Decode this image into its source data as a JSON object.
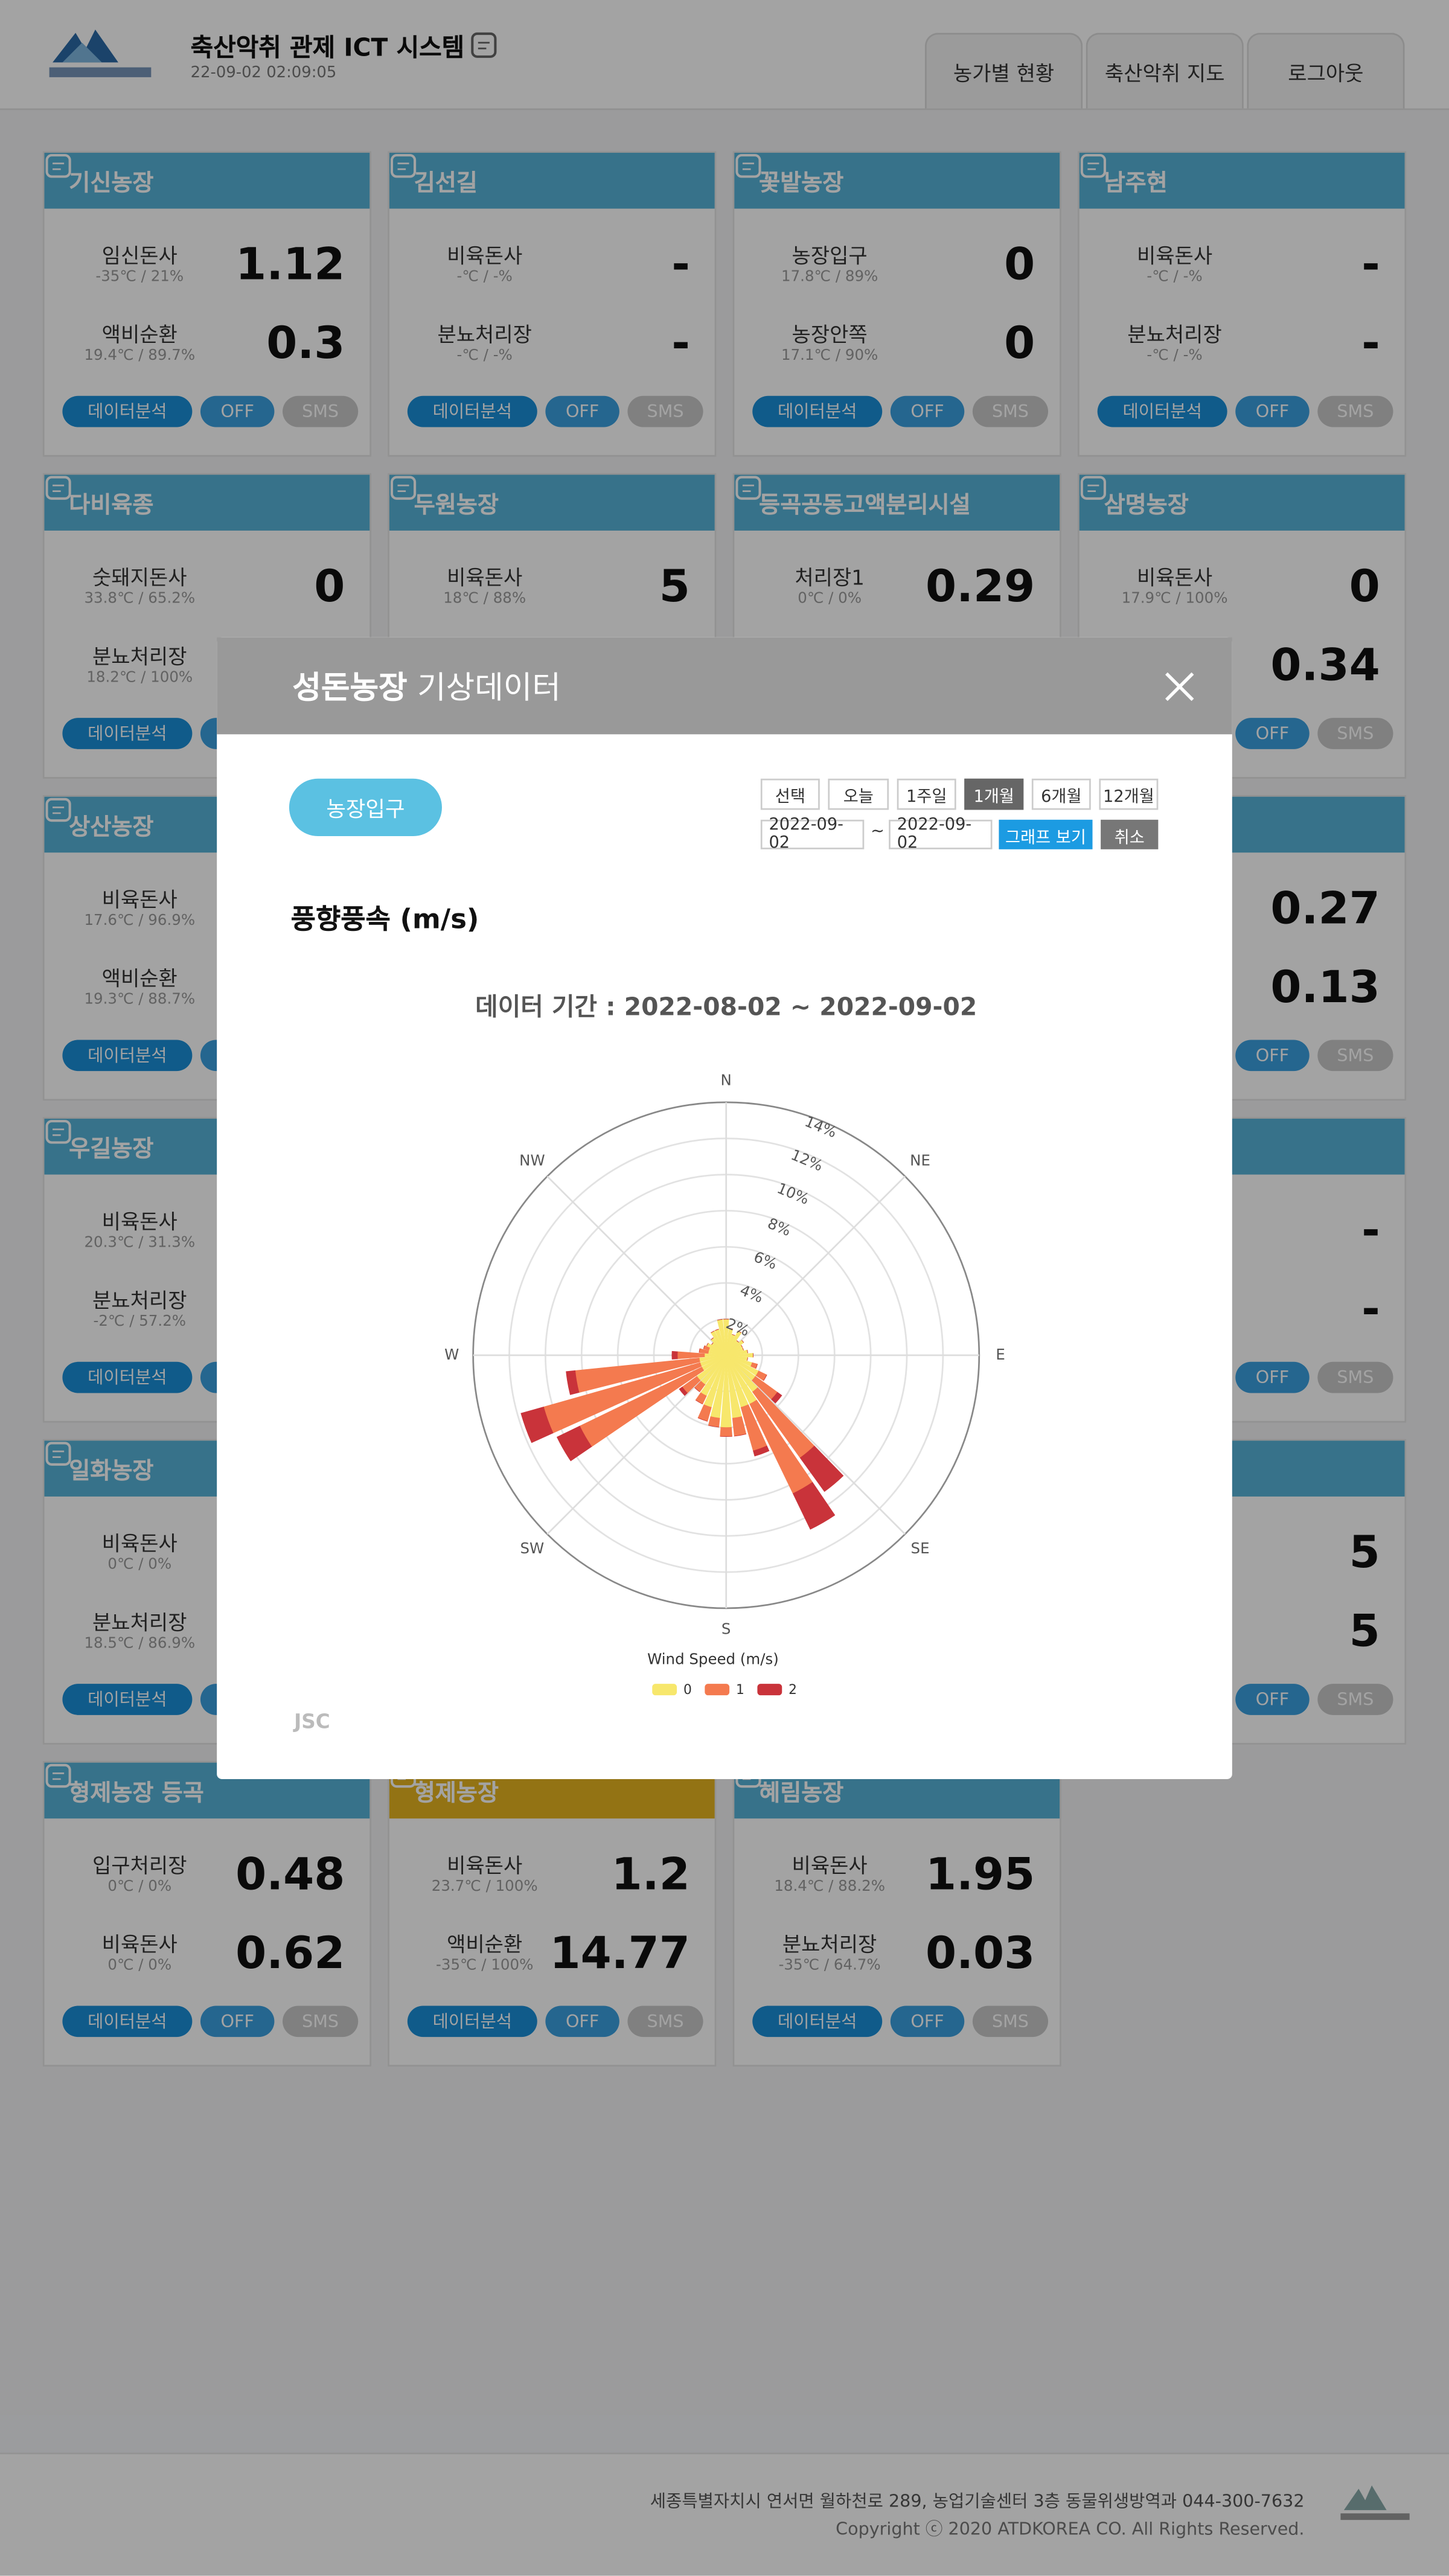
{
  "header": {
    "title": "축산악취 관제 ICT 시스템",
    "datetime": "22-09-02 02:09:05",
    "tabs": [
      "농가별 현황",
      "축산악취 지도",
      "로그아웃"
    ]
  },
  "card_buttons": [
    "데이터분석",
    "OFF",
    "SMS"
  ],
  "card_rows": [
    [
      {
        "name": "기신농장",
        "sensors": [
          {
            "label": "임신돈사",
            "env": "-35℃ / 21%",
            "value": 1.12
          },
          {
            "label": "액비순환",
            "env": "19.4℃ / 89.7%",
            "value": 0.3
          }
        ]
      },
      {
        "name": "김선길",
        "sensors": [
          {
            "label": "비육돈사",
            "env": "-℃ / -%",
            "value": "-"
          },
          {
            "label": "분뇨처리장",
            "env": "-℃ / -%",
            "value": "-"
          }
        ]
      },
      {
        "name": "꽃밭농장",
        "sensors": [
          {
            "label": "농장입구",
            "env": "17.8℃ / 89%",
            "value": 0
          },
          {
            "label": "농장안쪽",
            "env": "17.1℃ / 90%",
            "value": 0
          }
        ]
      },
      {
        "name": "남주현",
        "sensors": [
          {
            "label": "비육돈사",
            "env": "-℃ / -%",
            "value": "-"
          },
          {
            "label": "분뇨처리장",
            "env": "-℃ / -%",
            "value": "-"
          }
        ]
      }
    ],
    [
      {
        "name": "다비육종",
        "sensors": [
          {
            "label": "숫돼지돈사",
            "env": "33.8℃ / 65.2%",
            "value": 0
          },
          {
            "label": "분뇨처리장",
            "env": "18.2℃ / 100%"
          }
        ]
      },
      {
        "name": "두원농장",
        "sensors": [
          {
            "label": "비육돈사",
            "env": "18℃ / 88%",
            "value": 5
          }
        ]
      },
      {
        "name": "등곡공동고액분리시설",
        "sensors": [
          {
            "label": "처리장1",
            "env": "0℃ / 0%",
            "value": 0.29
          }
        ]
      },
      {
        "name": "삼명농장",
        "sensors": [
          {
            "label": "비육돈사",
            "env": "17.9℃ / 100%",
            "value": 0
          },
          {
            "value": 0.34
          }
        ]
      }
    ],
    [
      {
        "name": "상산농장",
        "sensors": [
          {
            "label": "비육돈사",
            "env": "17.6℃ / 96.9%"
          },
          {
            "label": "액비순환",
            "env": "19.3℃ / 88.7%"
          }
        ]
      },
      null,
      null,
      {
        "sensors": [
          {
            "value": 0.27
          },
          {
            "value": 0.13
          }
        ]
      }
    ],
    [
      {
        "name": "우길농장",
        "sensors": [
          {
            "label": "비육돈사",
            "env": "20.3℃ / 31.3%"
          },
          {
            "label": "분뇨처리장",
            "env": "-2℃ / 57.2%"
          }
        ]
      },
      null,
      null,
      {
        "sensors": [
          {
            "value": "-"
          },
          {
            "value": "-"
          }
        ]
      }
    ],
    [
      {
        "name": "일화농장",
        "sensors": [
          {
            "label": "비육돈사",
            "env": "0℃ / 0%"
          },
          {
            "label": "분뇨처리장",
            "env": "18.5℃ / 86.9%"
          }
        ]
      },
      null,
      null,
      {
        "sensors": [
          {
            "value": 5
          },
          {
            "value": 5
          }
        ]
      }
    ],
    [
      {
        "name": "형제농장 등곡",
        "sensors": [
          {
            "label": "입구처리장",
            "env": "0℃ / 0%",
            "value": 0.48
          },
          {
            "label": "비육돈사",
            "env": "0℃ / 0%",
            "value": 0.62
          }
        ]
      },
      {
        "name": "형제농장",
        "header_color": "#e6b520",
        "sensors": [
          {
            "label": "비육돈사",
            "env": "23.7℃ / 100%",
            "value": 1.2
          },
          {
            "label": "액비순환",
            "env": "-35℃ / 100%",
            "value": 14.77
          }
        ]
      },
      {
        "name": "혜림농장",
        "sensors": [
          {
            "label": "비육돈사",
            "env": "18.4℃ / 88.2%",
            "value": 1.95
          },
          {
            "label": "분뇨처리장",
            "env": "-35℃ / 64.7%",
            "value": 0.03
          }
        ]
      },
      null
    ]
  ],
  "modal": {
    "farm": "성돈농장",
    "title": "기상데이터",
    "location_button": "농장입구",
    "periods": [
      "선택",
      "오늘",
      "1주일",
      "1개월",
      "6개월",
      "12개월"
    ],
    "active_period": 3,
    "date_from": "2022-09-02",
    "date_separator": "~",
    "date_to": "2022-09-02",
    "view_button": "그래프 보기",
    "cancel_button": "취소",
    "section_title": "풍향풍속 (m/s)"
  },
  "chart_data": {
    "type": "windrose",
    "title": "데이터 기간 : 2022-08-02 ~ 2022-09-02",
    "credit": "JSC",
    "x": [
      0,
      10,
      20,
      30,
      40,
      50,
      60,
      70,
      80,
      90,
      100,
      110,
      120,
      130,
      140,
      150,
      160,
      170,
      180,
      190,
      200,
      210,
      220,
      230,
      240,
      250,
      260,
      270,
      280,
      290,
      300,
      310,
      320,
      330,
      340,
      350
    ],
    "xlim": [
      0,
      360
    ],
    "xticks": [
      {
        "value": 0,
        "label": "N"
      },
      {
        "value": 45,
        "label": "NE"
      },
      {
        "value": 90,
        "label": "E"
      },
      {
        "value": 135,
        "label": "SE"
      },
      {
        "value": 180,
        "label": "S"
      },
      {
        "value": 225,
        "label": "SW"
      },
      {
        "value": 270,
        "label": "W"
      },
      {
        "value": 315,
        "label": "NW"
      }
    ],
    "ylim": [
      0,
      14
    ],
    "yticks": [
      {
        "value": 2,
        "label": "2%"
      },
      {
        "value": 4,
        "label": "4%"
      },
      {
        "value": 6,
        "label": "6%"
      },
      {
        "value": 8,
        "label": "8%"
      },
      {
        "value": 10,
        "label": "10%"
      },
      {
        "value": 12,
        "label": "12%"
      },
      {
        "value": 14,
        "label": "14%"
      }
    ],
    "grid": true,
    "stacked": true,
    "legend_title": "Wind Speed (m/s)",
    "series": [
      {
        "name": "0",
        "color": "#f7e76c",
        "values": [
          2.0,
          1.5,
          1.2,
          1.5,
          1.0,
          1.2,
          1.0,
          1.0,
          1.2,
          1.5,
          1.2,
          1.5,
          2.0,
          2.0,
          2.5,
          3.0,
          3.0,
          3.5,
          4.0,
          3.5,
          3.0,
          2.5,
          2.0,
          2.0,
          1.5,
          1.5,
          1.5,
          1.2,
          1.0,
          1.0,
          1.2,
          1.0,
          1.2,
          1.5,
          1.5,
          2.0
        ]
      },
      {
        "name": "1",
        "color": "#f47a4f",
        "values": [
          0,
          0,
          0,
          0,
          0,
          0,
          0,
          0,
          0,
          0,
          0,
          0.3,
          0.5,
          1.5,
          4.5,
          5.5,
          2.5,
          1.0,
          0.5,
          0.5,
          0.8,
          0.5,
          0.5,
          1.0,
          7.5,
          9.0,
          6.9,
          1.5,
          0.5,
          0.3,
          0,
          0,
          0,
          0,
          0,
          0
        ]
      },
      {
        "name": "2",
        "color": "#c9333a",
        "values": [
          0,
          0,
          0,
          0,
          0,
          0,
          0,
          0,
          0,
          0,
          0,
          0,
          0,
          0.3,
          2.3,
          2.2,
          0.3,
          0,
          0,
          0,
          0,
          0,
          0,
          0.2,
          1.4,
          1.3,
          0.5,
          0.3,
          0,
          0,
          0,
          0,
          0,
          0,
          0,
          0
        ]
      }
    ]
  },
  "footer": {
    "address": "세종특별자치시 연서면 월하천로 289, 농업기술센터 3층 동물위생방역과 044-300-7632",
    "copyright": "Copyright ⓒ 2020 ATDKOREA CO. All Rights Reserved."
  }
}
